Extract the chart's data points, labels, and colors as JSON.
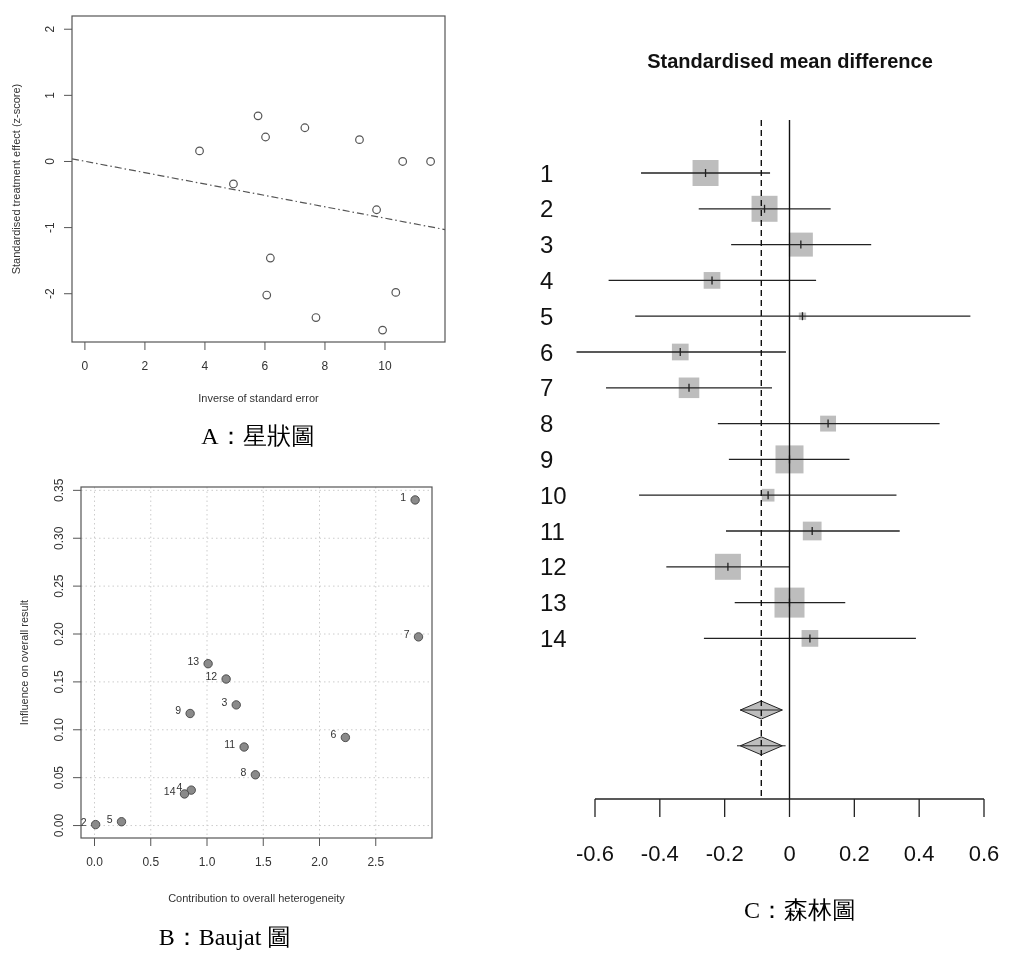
{
  "chart_data": [
    {
      "type": "scatter",
      "xlabel": "Inverse of standard error",
      "ylabel": "Standardised treatment effect (z-score)",
      "xlim": [
        -0.43,
        12.0
      ],
      "ylim": [
        -2.73,
        2.2
      ],
      "xticks": [
        0,
        2,
        4,
        6,
        8,
        10
      ],
      "yticks": [
        -2,
        -1,
        0,
        1,
        2
      ],
      "annotations": [
        "A：星狀圖"
      ],
      "series": [
        {
          "type": "scatter",
          "marker": "circle",
          "color": "#555555",
          "x": [
            3.82,
            5.77,
            6.02,
            7.33,
            9.15,
            10.59,
            11.52,
            4.95,
            9.72,
            6.18,
            6.06,
            7.7,
            10.36,
            9.92
          ],
          "values": [
            0.16,
            0.69,
            0.37,
            0.51,
            0.33,
            0.0,
            0.0,
            -0.34,
            -0.73,
            -1.46,
            -2.02,
            -2.36,
            -1.98,
            -2.55
          ]
        },
        {
          "type": "line",
          "line_style": "dashed",
          "color": "#555555",
          "x": [
            -0.43,
            12.0
          ],
          "values": [
            0.04,
            -1.03
          ]
        }
      ]
    },
    {
      "type": "scatter",
      "xlabel": "Contribution to overall heterogeneity",
      "ylabel": "Influence on overall result",
      "xlim": [
        -0.12,
        3.0
      ],
      "ylim": [
        -0.013,
        0.3535
      ],
      "xticks": [
        {
          "value": 0,
          "label": "0.0"
        },
        0.5,
        {
          "value": 1,
          "label": "1.0"
        },
        1.5,
        {
          "value": 2,
          "label": "2.0"
        },
        2.5
      ],
      "yticks": [
        {
          "value": 0,
          "label": "0.00"
        },
        0.05,
        {
          "value": 0.1,
          "label": "0.10"
        },
        0.15,
        {
          "value": 0.2,
          "label": "0.20"
        },
        0.25,
        {
          "value": 0.3,
          "label": "0.30"
        },
        0.35
      ],
      "grid": true,
      "series": [
        {
          "type": "scatter",
          "marker": "circle",
          "color": "#8a8a8a",
          "x": [
            2.85,
            0.01,
            1.26,
            0.86,
            0.24,
            2.23,
            2.88,
            1.43,
            0.85,
            null,
            1.33,
            1.17,
            1.01,
            0.8
          ],
          "values": [
            0.34,
            0.001,
            0.126,
            0.037,
            0.004,
            0.092,
            0.197,
            0.053,
            0.117,
            null,
            0.082,
            0.153,
            0.169,
            0.033
          ]
        }
      ],
      "annotations": [
        {
          "text": "1",
          "x": 2.85,
          "y": 0.34
        },
        {
          "text": "2",
          "x": 0.01,
          "y": 0.001
        },
        {
          "text": "3",
          "x": 1.26,
          "y": 0.126
        },
        {
          "text": "4",
          "x": 0.86,
          "y": 0.037
        },
        {
          "text": "5",
          "x": 0.24,
          "y": 0.004
        },
        {
          "text": "6",
          "x": 2.23,
          "y": 0.092
        },
        {
          "text": "7",
          "x": 2.88,
          "y": 0.197
        },
        {
          "text": "8",
          "x": 1.43,
          "y": 0.053
        },
        {
          "text": "9",
          "x": 0.85,
          "y": 0.117
        },
        {
          "text": "11",
          "x": 1.33,
          "y": 0.082
        },
        {
          "text": "12",
          "x": 1.17,
          "y": 0.153
        },
        {
          "text": "13",
          "x": 1.01,
          "y": 0.169
        },
        {
          "text": "14",
          "x": 0.8,
          "y": 0.033
        },
        "B：Baujat 圖"
      ]
    },
    {
      "type": "bubble",
      "orientation": "horizontal",
      "title": "Standardised mean difference",
      "categories": [
        "1",
        "2",
        "3",
        "4",
        "5",
        "6",
        "7",
        "8",
        "9",
        "10",
        "11",
        "12",
        "13",
        "14",
        null,
        null,
        null
      ],
      "xlim": [
        -0.6,
        0.6
      ],
      "xticks": [
        -0.6,
        -0.4,
        -0.2,
        0,
        0.2,
        0.4,
        0.6
      ],
      "ref_lines": [
        {
          "axis": "x",
          "value": 0,
          "line_style": "solid"
        },
        {
          "axis": "x",
          "value": -0.087,
          "line_style": "dashed"
        }
      ],
      "series": [
        {
          "marker": "square",
          "color": "#bdbdbd",
          "values": [
            -0.259,
            -0.077,
            0.035,
            -0.239,
            0.04,
            -0.337,
            -0.31,
            0.119,
            0.0,
            -0.066,
            0.07,
            -0.19,
            0.0,
            0.063,
            null,
            null,
            null
          ],
          "sizes": [
            0.75,
            0.75,
            0.64,
            0.31,
            0.06,
            0.31,
            0.47,
            0.28,
            0.87,
            0.18,
            0.39,
            0.75,
            1,
            0.31,
            null,
            null,
            null
          ],
          "errors": [
            [
              -0.458,
              -0.06
            ],
            [
              -0.28,
              0.127
            ],
            [
              -0.18,
              0.252
            ],
            [
              -0.558,
              0.082
            ],
            [
              -0.476,
              0.558
            ],
            [
              -0.657,
              -0.011
            ],
            [
              -0.566,
              -0.054
            ],
            [
              -0.221,
              0.463
            ],
            [
              -0.187,
              0.185
            ],
            [
              -0.464,
              0.33
            ],
            [
              -0.196,
              0.34
            ],
            [
              -0.38,
              0.0
            ],
            [
              -0.169,
              0.172
            ],
            [
              -0.264,
              0.39
            ],
            null,
            null,
            null
          ]
        },
        {
          "marker": "diamond",
          "color": "#bdbdbd",
          "values": [
            null,
            null,
            null,
            null,
            null,
            null,
            null,
            null,
            null,
            null,
            null,
            null,
            null,
            null,
            null,
            -0.087,
            -0.087
          ],
          "errors": [
            null,
            null,
            null,
            null,
            null,
            null,
            null,
            null,
            null,
            null,
            null,
            null,
            null,
            null,
            null,
            [
              -0.152,
              -0.022
            ],
            [
              -0.162,
              -0.012
            ]
          ]
        }
      ],
      "annotations": [
        "C：森林圖"
      ]
    }
  ]
}
